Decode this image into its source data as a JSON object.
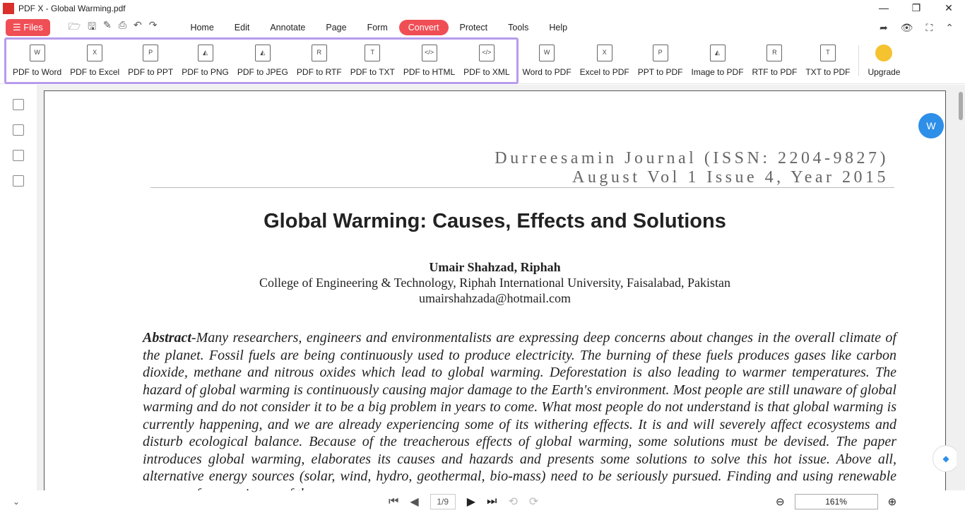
{
  "window": {
    "title": "PDF X - Global Warming.pdf"
  },
  "menu": {
    "files": "Files",
    "tabs": [
      "Home",
      "Edit",
      "Annotate",
      "Page",
      "Form",
      "Convert",
      "Protect",
      "Tools",
      "Help"
    ],
    "active_tab": "Convert"
  },
  "ribbon": {
    "pdf_to": [
      "PDF to Word",
      "PDF to Excel",
      "PDF to PPT",
      "PDF to PNG",
      "PDF to JPEG",
      "PDF to RTF",
      "PDF to TXT",
      "PDF to HTML",
      "PDF to XML"
    ],
    "to_pdf": [
      "Word to PDF",
      "Excel to PDF",
      "PPT to PDF",
      "Image to PDF",
      "RTF to PDF",
      "TXT to PDF"
    ],
    "upgrade": "Upgrade"
  },
  "document": {
    "journal_line1": "Durreesamin Journal (ISSN: 2204-9827)",
    "journal_line2": "August Vol 1 Issue 4, Year 2015",
    "title": "Global Warming: Causes, Effects and Solutions",
    "author": "Umair Shahzad, Riphah",
    "affiliation": "College of Engineering & Technology, Riphah International University, Faisalabad, Pakistan",
    "email": "umairshahzada@hotmail.com",
    "abstract_label": "Abstract",
    "abstract_text": "-Many researchers, engineers and environmentalists are expressing deep concerns about changes in the overall climate of the planet. Fossil fuels are being continuously used to produce electricity. The burning of these fuels produces gases like carbon dioxide, methane and nitrous oxides which lead to global warming. Deforestation is also leading to warmer temperatures. The hazard of global warming is continuously causing major damage to the Earth's environment. Most people are still unaware of global warming and do not consider it to be a big problem in years to come. What most people do not understand is that global warming is currently happening, and we are already experiencing some of its withering effects. It is and will severely affect ecosystems and disturb ecological balance. Because of the treacherous effects of global warming, some solutions must be devised. The paper introduces global warming, elaborates its causes and hazards and presents some solutions to solve this hot issue. Above all, alternative energy sources (solar, wind, hydro, geothermal, bio-mass) need to be seriously pursued. Finding and using renewable sources of energy is one of the"
  },
  "status": {
    "page": "1/9",
    "zoom": "161%"
  },
  "colors": {
    "accent": "#f04e55",
    "highlight": "#b79ced"
  }
}
